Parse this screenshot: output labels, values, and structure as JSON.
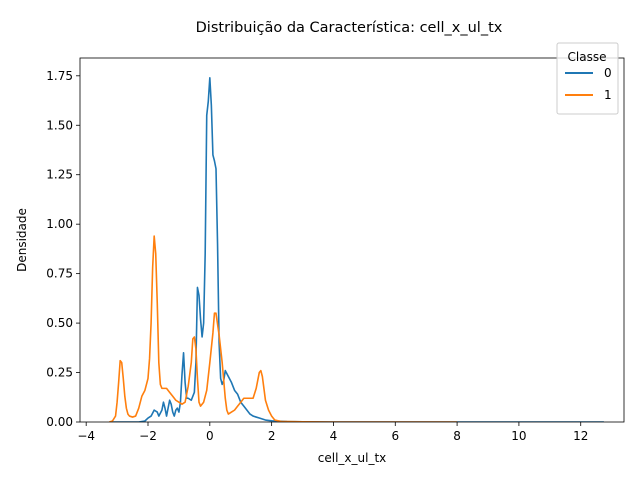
{
  "chart_data": {
    "type": "line",
    "title": "Distribuição da Característica: cell_x_ul_tx",
    "xlabel": "cell_x_ul_tx",
    "ylabel": "Densidade",
    "xlim": [
      -4.2,
      13.4
    ],
    "ylim": [
      0,
      1.84
    ],
    "x_ticks": [
      -4,
      -2,
      0,
      2,
      4,
      6,
      8,
      10,
      12
    ],
    "x_tick_labels": [
      "−4",
      "−2",
      "0",
      "2",
      "4",
      "6",
      "8",
      "10",
      "12"
    ],
    "y_ticks": [
      0,
      0.25,
      0.5,
      0.75,
      1.0,
      1.25,
      1.5,
      1.75
    ],
    "y_tick_labels": [
      "0.00",
      "0.25",
      "0.50",
      "0.75",
      "1.00",
      "1.25",
      "1.50",
      "1.75"
    ],
    "grid": false,
    "legend": {
      "title": "Classe",
      "placement": "top-right"
    },
    "series": [
      {
        "name": "0",
        "color": "#1f77b4",
        "points": [
          [
            -3.2,
            0.0
          ],
          [
            -2.9,
            0.0
          ],
          [
            -2.6,
            0.0
          ],
          [
            -2.3,
            0.0
          ],
          [
            -2.1,
            0.005
          ],
          [
            -2.0,
            0.02
          ],
          [
            -1.9,
            0.03
          ],
          [
            -1.8,
            0.06
          ],
          [
            -1.7,
            0.05
          ],
          [
            -1.65,
            0.03
          ],
          [
            -1.55,
            0.06
          ],
          [
            -1.5,
            0.1
          ],
          [
            -1.45,
            0.07
          ],
          [
            -1.4,
            0.03
          ],
          [
            -1.35,
            0.07
          ],
          [
            -1.3,
            0.11
          ],
          [
            -1.25,
            0.09
          ],
          [
            -1.2,
            0.05
          ],
          [
            -1.15,
            0.03
          ],
          [
            -1.1,
            0.06
          ],
          [
            -1.05,
            0.07
          ],
          [
            -1.0,
            0.05
          ],
          [
            -0.95,
            0.1
          ],
          [
            -0.9,
            0.24
          ],
          [
            -0.85,
            0.35
          ],
          [
            -0.8,
            0.2
          ],
          [
            -0.75,
            0.12
          ],
          [
            -0.7,
            0.12
          ],
          [
            -0.6,
            0.11
          ],
          [
            -0.5,
            0.15
          ],
          [
            -0.45,
            0.3
          ],
          [
            -0.4,
            0.68
          ],
          [
            -0.35,
            0.64
          ],
          [
            -0.3,
            0.52
          ],
          [
            -0.25,
            0.43
          ],
          [
            -0.2,
            0.5
          ],
          [
            -0.15,
            0.85
          ],
          [
            -0.1,
            1.55
          ],
          [
            -0.05,
            1.62
          ],
          [
            0.0,
            1.74
          ],
          [
            0.05,
            1.6
          ],
          [
            0.1,
            1.35
          ],
          [
            0.15,
            1.32
          ],
          [
            0.2,
            1.28
          ],
          [
            0.25,
            0.9
          ],
          [
            0.3,
            0.4
          ],
          [
            0.35,
            0.22
          ],
          [
            0.4,
            0.19
          ],
          [
            0.45,
            0.21
          ],
          [
            0.5,
            0.26
          ],
          [
            0.6,
            0.23
          ],
          [
            0.7,
            0.2
          ],
          [
            0.8,
            0.16
          ],
          [
            0.9,
            0.14
          ],
          [
            1.0,
            0.1
          ],
          [
            1.1,
            0.08
          ],
          [
            1.2,
            0.06
          ],
          [
            1.3,
            0.04
          ],
          [
            1.4,
            0.03
          ],
          [
            1.5,
            0.025
          ],
          [
            1.6,
            0.02
          ],
          [
            1.8,
            0.01
          ],
          [
            2.0,
            0.006
          ],
          [
            2.5,
            0.002
          ],
          [
            3.0,
            0.001
          ],
          [
            4.0,
            0.0
          ],
          [
            6.0,
            0.0
          ],
          [
            8.0,
            0.0
          ],
          [
            10.0,
            0.0
          ],
          [
            12.0,
            0.0
          ],
          [
            12.75,
            0.0
          ]
        ]
      },
      {
        "name": "1",
        "color": "#ff7f0e",
        "points": [
          [
            -3.25,
            0.0
          ],
          [
            -3.15,
            0.005
          ],
          [
            -3.05,
            0.03
          ],
          [
            -3.0,
            0.1
          ],
          [
            -2.95,
            0.2
          ],
          [
            -2.9,
            0.31
          ],
          [
            -2.85,
            0.3
          ],
          [
            -2.8,
            0.22
          ],
          [
            -2.75,
            0.13
          ],
          [
            -2.7,
            0.07
          ],
          [
            -2.65,
            0.04
          ],
          [
            -2.6,
            0.03
          ],
          [
            -2.5,
            0.025
          ],
          [
            -2.4,
            0.03
          ],
          [
            -2.3,
            0.07
          ],
          [
            -2.2,
            0.13
          ],
          [
            -2.1,
            0.16
          ],
          [
            -2.0,
            0.22
          ],
          [
            -1.95,
            0.32
          ],
          [
            -1.9,
            0.5
          ],
          [
            -1.85,
            0.78
          ],
          [
            -1.8,
            0.94
          ],
          [
            -1.75,
            0.85
          ],
          [
            -1.7,
            0.6
          ],
          [
            -1.65,
            0.3
          ],
          [
            -1.6,
            0.19
          ],
          [
            -1.55,
            0.17
          ],
          [
            -1.5,
            0.17
          ],
          [
            -1.4,
            0.17
          ],
          [
            -1.3,
            0.15
          ],
          [
            -1.2,
            0.13
          ],
          [
            -1.1,
            0.11
          ],
          [
            -1.0,
            0.1
          ],
          [
            -0.9,
            0.09
          ],
          [
            -0.8,
            0.1
          ],
          [
            -0.7,
            0.18
          ],
          [
            -0.6,
            0.3
          ],
          [
            -0.55,
            0.42
          ],
          [
            -0.5,
            0.43
          ],
          [
            -0.45,
            0.37
          ],
          [
            -0.4,
            0.22
          ],
          [
            -0.35,
            0.1
          ],
          [
            -0.3,
            0.08
          ],
          [
            -0.2,
            0.1
          ],
          [
            -0.1,
            0.16
          ],
          [
            0.0,
            0.3
          ],
          [
            0.1,
            0.45
          ],
          [
            0.15,
            0.55
          ],
          [
            0.2,
            0.55
          ],
          [
            0.3,
            0.44
          ],
          [
            0.4,
            0.3
          ],
          [
            0.5,
            0.12
          ],
          [
            0.55,
            0.06
          ],
          [
            0.6,
            0.04
          ],
          [
            0.7,
            0.05
          ],
          [
            0.8,
            0.06
          ],
          [
            0.9,
            0.08
          ],
          [
            1.0,
            0.1
          ],
          [
            1.1,
            0.12
          ],
          [
            1.2,
            0.12
          ],
          [
            1.3,
            0.12
          ],
          [
            1.4,
            0.12
          ],
          [
            1.5,
            0.17
          ],
          [
            1.6,
            0.25
          ],
          [
            1.65,
            0.26
          ],
          [
            1.7,
            0.23
          ],
          [
            1.75,
            0.17
          ],
          [
            1.8,
            0.11
          ],
          [
            1.9,
            0.06
          ],
          [
            2.0,
            0.03
          ],
          [
            2.1,
            0.01
          ],
          [
            2.3,
            0.003
          ],
          [
            3.0,
            0.001
          ],
          [
            4.0,
            0.0
          ],
          [
            5.0,
            0.0
          ],
          [
            6.0,
            0.0
          ],
          [
            7.0,
            0.0
          ],
          [
            8.0,
            0.0
          ]
        ]
      }
    ]
  }
}
